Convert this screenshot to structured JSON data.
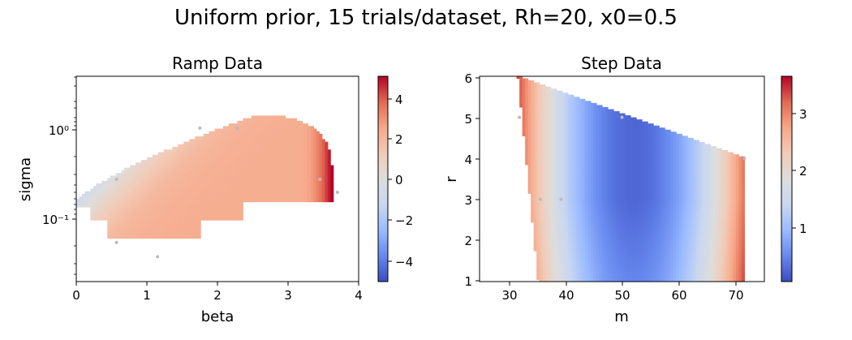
{
  "figure": {
    "suptitle": "Uniform prior, 15 trials/dataset, Rh=20, x0=0.5"
  },
  "colors": {
    "cmap": [
      "#3b4cc0",
      "#6788ee",
      "#9abbff",
      "#c9d7f0",
      "#dddddd",
      "#f2cbb7",
      "#f7a889",
      "#e26952",
      "#b40426"
    ],
    "point_gray": "#bbbbbb"
  },
  "chart_data": [
    {
      "type": "heatmap",
      "title": "Ramp Data",
      "xlabel": "beta",
      "ylabel": "sigma",
      "xlim": [
        0,
        4
      ],
      "ylim": [
        0.02,
        4
      ],
      "yscale": "log",
      "xticks": [
        "0",
        "1",
        "2",
        "3",
        "4"
      ],
      "yticks": [
        "10⁻¹",
        "10⁰"
      ],
      "colorbar": {
        "range": [
          -5,
          5
        ],
        "ticks": [
          "4",
          "2",
          "0",
          "−2",
          "−4"
        ]
      },
      "legend": "none",
      "grid": false,
      "scatter_points": [
        {
          "x": 0.57,
          "y": 0.28
        },
        {
          "x": 1.75,
          "y": 1.05
        },
        {
          "x": 2.28,
          "y": 1.05
        },
        {
          "x": 3.45,
          "y": 0.28
        },
        {
          "x": 3.7,
          "y": 0.2
        },
        {
          "x": 0.57,
          "y": 0.055
        },
        {
          "x": 1.15,
          "y": 0.038
        }
      ]
    },
    {
      "type": "heatmap",
      "title": "Step Data",
      "xlabel": "m",
      "ylabel": "r",
      "xlim": [
        25,
        75
      ],
      "ylim": [
        1,
        6
      ],
      "xticks": [
        "30",
        "40",
        "50",
        "60",
        "70"
      ],
      "yticks": [
        "1",
        "2",
        "3",
        "4",
        "5",
        "6"
      ],
      "colorbar": {
        "range": [
          0.05,
          3.65
        ],
        "ticks": [
          "3",
          "2",
          "1"
        ]
      },
      "legend": "none",
      "grid": false,
      "scatter_points": [
        {
          "x": 32,
          "y": 5
        },
        {
          "x": 35.7,
          "y": 3
        },
        {
          "x": 39.3,
          "y": 3
        },
        {
          "x": 50,
          "y": 5
        },
        {
          "x": 71.5,
          "y": 4
        }
      ]
    }
  ]
}
